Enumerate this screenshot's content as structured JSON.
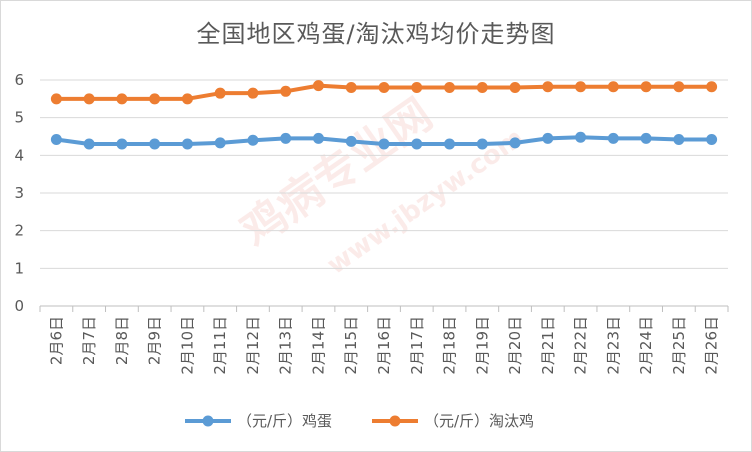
{
  "chart_data": {
    "type": "line",
    "title": "全国地区鸡蛋/淘汰鸡均价走势图",
    "categories": [
      "2月6日",
      "2月7日",
      "2月8日",
      "2月9日",
      "2月10日",
      "2月11日",
      "2月12日",
      "2月13日",
      "2月14日",
      "2月15日",
      "2月16日",
      "2月17日",
      "2月18日",
      "2月19日",
      "2月20日",
      "2月21日",
      "2月22日",
      "2月23日",
      "2月24日",
      "2月25日",
      "2月26日"
    ],
    "series": [
      {
        "name": "（元/斤）鸡蛋",
        "color": "#5b9bd5",
        "values": [
          4.42,
          4.3,
          4.3,
          4.3,
          4.3,
          4.33,
          4.4,
          4.45,
          4.45,
          4.37,
          4.3,
          4.3,
          4.3,
          4.3,
          4.33,
          4.45,
          4.48,
          4.45,
          4.45,
          4.42,
          4.42
        ]
      },
      {
        "name": "（元/斤）淘汰鸡",
        "color": "#ed7d31",
        "values": [
          5.5,
          5.5,
          5.5,
          5.5,
          5.5,
          5.65,
          5.65,
          5.7,
          5.85,
          5.8,
          5.8,
          5.8,
          5.8,
          5.8,
          5.8,
          5.82,
          5.82,
          5.82,
          5.82,
          5.82,
          5.82
        ]
      }
    ],
    "ylim": [
      0,
      6
    ],
    "yticks": [
      "0",
      "1",
      "2",
      "3",
      "4",
      "5",
      "6"
    ],
    "grid": true,
    "legend_position": "bottom",
    "xlabel": "",
    "ylabel": ""
  },
  "watermark": {
    "main": "鸡病专业网",
    "url": "www.jbzyw.com"
  }
}
